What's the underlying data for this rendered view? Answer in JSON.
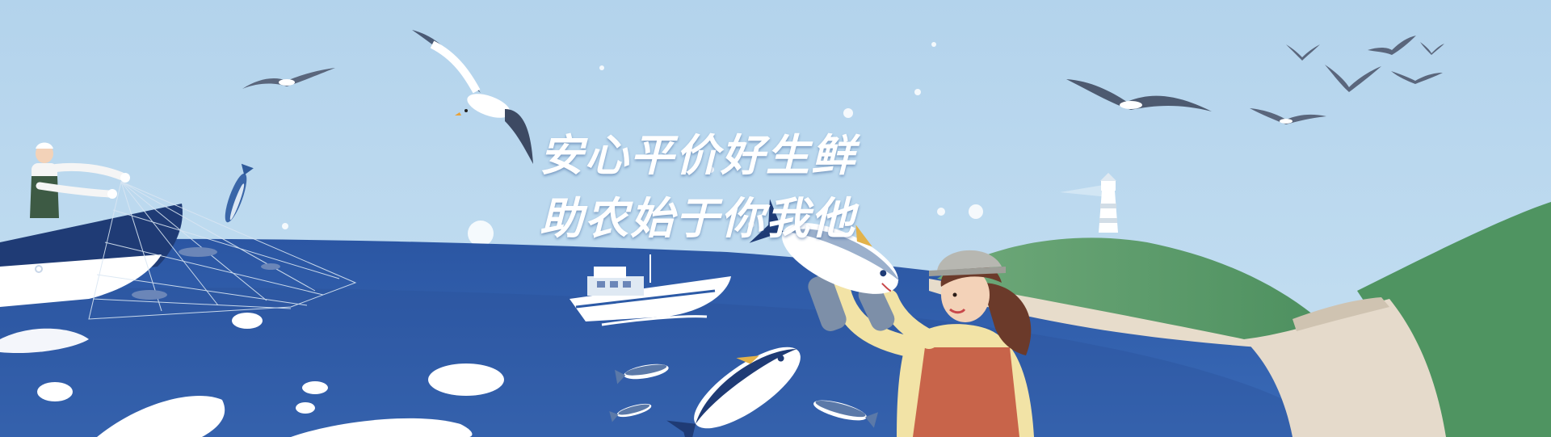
{
  "banner": {
    "slogan_line_1": "安心平价好生鲜",
    "slogan_line_2": "助农始于你我他"
  },
  "colors": {
    "sky": "#b9d8ee",
    "sea": "#2f5aa6",
    "sea_deep": "#233f86",
    "hill_green": "#5c9d6c",
    "sand": "#e7dccb",
    "white": "#ffffff",
    "apron": "#c8644a",
    "shirt": "#f2e3a6"
  },
  "icons": [
    "seagull-icon",
    "fish-icon",
    "boat-icon",
    "lighthouse-icon",
    "fishing-net-icon"
  ]
}
